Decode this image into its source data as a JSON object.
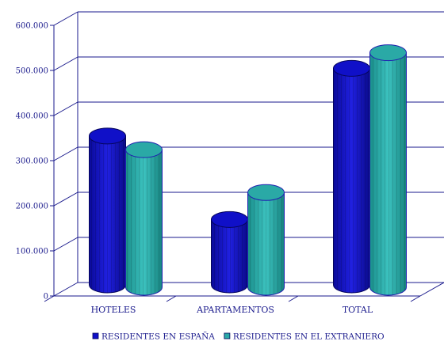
{
  "chart_data": {
    "type": "bar",
    "categories": [
      "HOTELES",
      "APARTAMENTOS",
      "TOTAL"
    ],
    "series": [
      {
        "name": "RESIDENTES EN ESPAÑA",
        "values": [
          330000,
          145000,
          480000
        ],
        "color": "#1010c8"
      },
      {
        "name": "RESIDENTES EN EL EXTRANIERO",
        "values": [
          305000,
          210000,
          520000
        ],
        "color": "#2aa9a6"
      }
    ],
    "ylim": [
      0,
      600000
    ],
    "yticks": [
      "0",
      "100.000",
      "200.000",
      "300.000",
      "400.000",
      "500.000",
      "600.000"
    ],
    "grid": true,
    "legend": "bottom",
    "axis_color": "#1a1a8c"
  }
}
